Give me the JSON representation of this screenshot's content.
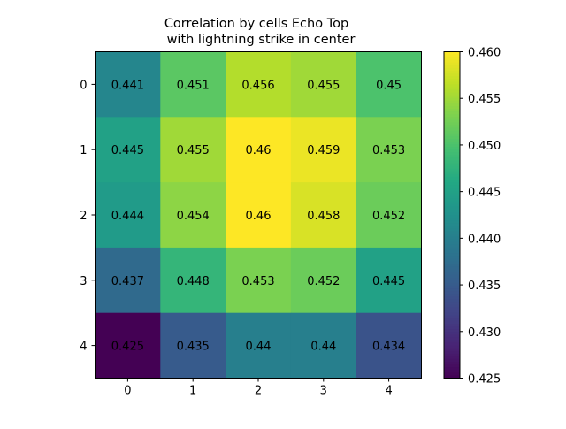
{
  "chart_data": {
    "type": "heatmap",
    "title_lines": [
      "Correlation by cells Echo Top",
      "with lightning strike in center"
    ],
    "x_ticks": [
      "0",
      "1",
      "2",
      "3",
      "4"
    ],
    "y_ticks": [
      "0",
      "1",
      "2",
      "3",
      "4"
    ],
    "values": [
      [
        0.441,
        0.451,
        0.456,
        0.455,
        0.45
      ],
      [
        0.445,
        0.455,
        0.46,
        0.459,
        0.453
      ],
      [
        0.444,
        0.454,
        0.46,
        0.458,
        0.452
      ],
      [
        0.437,
        0.448,
        0.453,
        0.452,
        0.445
      ],
      [
        0.425,
        0.435,
        0.44,
        0.44,
        0.434
      ]
    ],
    "labels": [
      [
        "0.441",
        "0.451",
        "0.456",
        "0.455",
        "0.45"
      ],
      [
        "0.445",
        "0.455",
        "0.46",
        "0.459",
        "0.453"
      ],
      [
        "0.444",
        "0.454",
        "0.46",
        "0.458",
        "0.452"
      ],
      [
        "0.437",
        "0.448",
        "0.453",
        "0.452",
        "0.445"
      ],
      [
        "0.425",
        "0.435",
        "0.44",
        "0.44",
        "0.434"
      ]
    ],
    "colorbar": {
      "range": [
        0.425,
        0.46
      ],
      "ticks": [
        "0.425",
        "0.430",
        "0.435",
        "0.440",
        "0.445",
        "0.450",
        "0.455",
        "0.460"
      ],
      "colormap": "viridis"
    }
  }
}
